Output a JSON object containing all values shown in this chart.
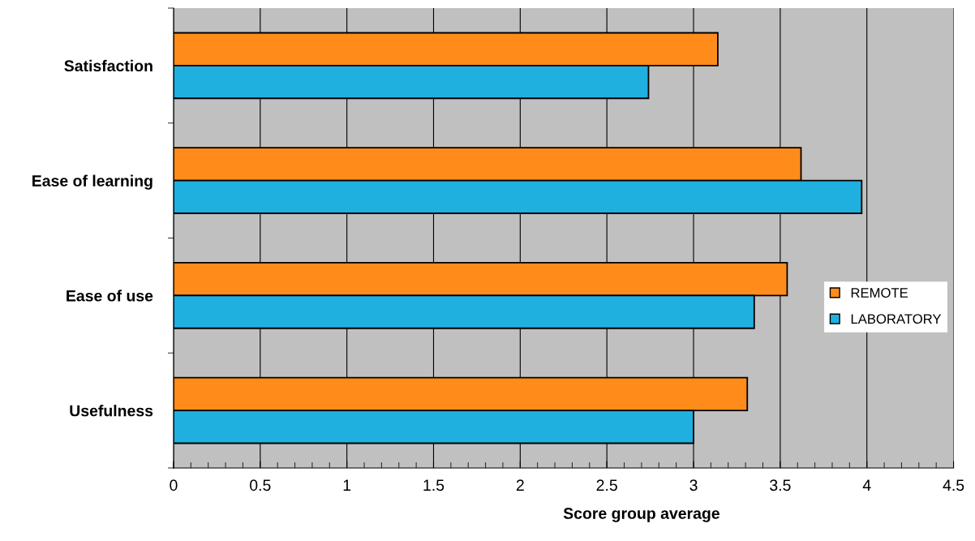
{
  "chart_data": {
    "type": "bar",
    "orientation": "horizontal",
    "xlabel": "Score group average",
    "categories": [
      "Satisfaction",
      "Ease of learning",
      "Ease of use",
      "Usefulness"
    ],
    "series": [
      {
        "name": "REMOTE",
        "color": "#ff8c1a",
        "values": [
          3.14,
          3.62,
          3.54,
          3.31
        ]
      },
      {
        "name": "LABORATORY",
        "color": "#1fb0e0",
        "values": [
          2.74,
          3.97,
          3.35,
          3.0
        ]
      }
    ],
    "xlim": [
      0,
      4.5
    ],
    "xticks": [
      0,
      {
        "value": 0.1,
        "label": null
      },
      {
        "value": 0.2,
        "label": null
      },
      {
        "value": 0.3,
        "label": null
      },
      {
        "value": 0.4,
        "label": null
      },
      0.5,
      {
        "value": 0.6,
        "label": null
      },
      {
        "value": 0.7,
        "label": null
      },
      {
        "value": 0.8,
        "label": null
      },
      {
        "value": 0.9,
        "label": null
      },
      1,
      {
        "value": 1.1,
        "label": null
      },
      {
        "value": 1.2,
        "label": null
      },
      {
        "value": 1.3,
        "label": null
      },
      {
        "value": 1.4,
        "label": null
      },
      1.5,
      {
        "value": 1.6,
        "label": null
      },
      {
        "value": 1.7,
        "label": null
      },
      {
        "value": 1.8,
        "label": null
      },
      {
        "value": 1.9,
        "label": null
      },
      2,
      {
        "value": 2.1,
        "label": null
      },
      {
        "value": 2.2,
        "label": null
      },
      {
        "value": 2.3,
        "label": null
      },
      {
        "value": 2.4,
        "label": null
      },
      2.5,
      {
        "value": 2.6,
        "label": null
      },
      {
        "value": 2.7,
        "label": null
      },
      {
        "value": 2.8,
        "label": null
      },
      {
        "value": 2.9,
        "label": null
      },
      3,
      {
        "value": 3.1,
        "label": null
      },
      {
        "value": 3.2,
        "label": null
      },
      {
        "value": 3.3,
        "label": null
      },
      {
        "value": 3.4,
        "label": null
      },
      3.5,
      {
        "value": 3.6,
        "label": null
      },
      {
        "value": 3.7,
        "label": null
      },
      {
        "value": 3.8,
        "label": null
      },
      {
        "value": 3.9,
        "label": null
      },
      4,
      {
        "value": 4.1,
        "label": null
      },
      {
        "value": 4.2,
        "label": null
      },
      {
        "value": 4.3,
        "label": null
      },
      {
        "value": 4.4,
        "label": null
      },
      4.5
    ],
    "grid": "x",
    "legend": "right"
  }
}
